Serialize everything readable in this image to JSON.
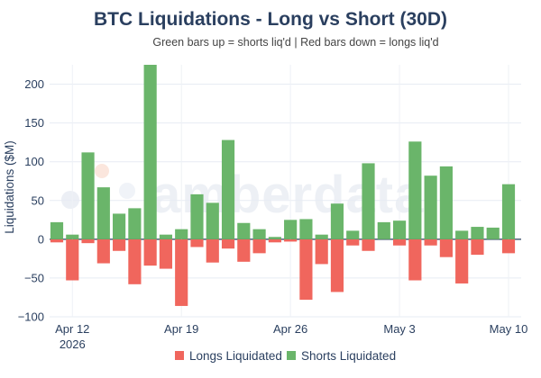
{
  "chart_data": {
    "type": "bar",
    "title": "BTC Liquidations - Long vs Short (30D)",
    "subtitle": "Green bars up = shorts liq'd | Red bars down = longs liq'd",
    "ylabel": "Liquidations ($M)",
    "xlabel": "",
    "ylim": [
      -100,
      225
    ],
    "yticks": [
      -100,
      -50,
      0,
      50,
      100,
      150,
      200
    ],
    "grid": true,
    "legend_position": "bottom-center",
    "x_start": "2026-04-11",
    "x_end": "2026-05-10",
    "x_ticks": [
      {
        "date": "2026-04-12",
        "label": "Apr 12",
        "sublabel": "2026"
      },
      {
        "date": "2026-04-19",
        "label": "Apr 19",
        "sublabel": ""
      },
      {
        "date": "2026-04-26",
        "label": "Apr 26",
        "sublabel": ""
      },
      {
        "date": "2026-05-03",
        "label": "May 3",
        "sublabel": ""
      },
      {
        "date": "2026-05-10",
        "label": "May 10",
        "sublabel": ""
      }
    ],
    "series": [
      {
        "name": "Longs Liquidated",
        "color": "#f0665d",
        "values": [
          -4,
          -53,
          -5,
          -31,
          -15,
          -58,
          -34,
          -38,
          -86,
          -10,
          -30,
          -12,
          -29,
          -18,
          -4,
          -3,
          -78,
          -32,
          -68,
          -8,
          -15,
          0,
          -8,
          -53,
          -8,
          -23,
          -57,
          -20,
          0,
          -18
        ]
      },
      {
        "name": "Shorts Liquidated",
        "color": "#6ab56a",
        "values": [
          22,
          6,
          112,
          67,
          33,
          40,
          225,
          6,
          13,
          58,
          47,
          128,
          21,
          13,
          3,
          25,
          26,
          6,
          46,
          11,
          98,
          22,
          24,
          126,
          82,
          94,
          11,
          16,
          15,
          71
        ]
      }
    ],
    "watermark": "amberdata"
  }
}
